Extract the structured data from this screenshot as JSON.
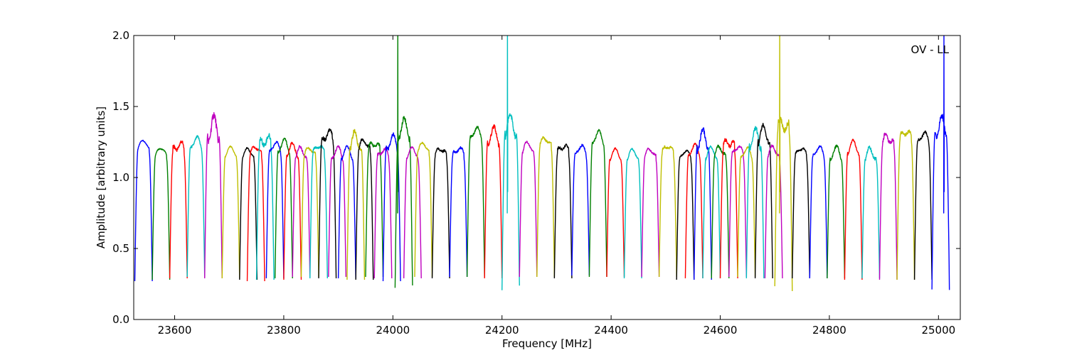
{
  "chart_data": {
    "type": "line",
    "title": "",
    "xlabel": "Frequency [MHz]",
    "ylabel": "Amplitude [arbitrary units]",
    "annotation": "OV - LL",
    "xlim": [
      23525,
      25040
    ],
    "ylim": [
      0.0,
      2.0
    ],
    "xticks": [
      23600,
      23800,
      24000,
      24200,
      24400,
      24600,
      24800,
      25000
    ],
    "yticks": [
      0.0,
      0.5,
      1.0,
      1.5,
      2.0
    ],
    "xtick_labels": [
      "23600",
      "23800",
      "24000",
      "24200",
      "24400",
      "24600",
      "24800",
      "25000"
    ],
    "ytick_labels": [
      "0.0",
      "0.5",
      "1.0",
      "1.5",
      "2.0"
    ],
    "grid": false,
    "legend": "none",
    "band_width_mhz": 32,
    "color_cycle": [
      "#0000ff",
      "#008000",
      "#ff0000",
      "#00bfbf",
      "#bf00bf",
      "#bfbf00",
      "#000000"
    ],
    "series": [
      {
        "start": 23527,
        "color": "#0000ff",
        "peak": 1.26,
        "ripple": 0.02,
        "dip": 0.27
      },
      {
        "start": 23559,
        "color": "#008000",
        "peak": 1.21,
        "ripple": 0.02,
        "dip": 0.28
      },
      {
        "start": 23591,
        "color": "#ff0000",
        "peak": 1.24,
        "ripple": 0.08,
        "dip": 0.29
      },
      {
        "start": 23623,
        "color": "#00bfbf",
        "peak": 1.27,
        "ripple": 0.05,
        "dip": 0.3
      },
      {
        "start": 23655,
        "color": "#bf00bf",
        "peak": 1.37,
        "ripple": 0.15,
        "dip": 0.29
      },
      {
        "start": 23687,
        "color": "#bfbf00",
        "peak": 1.21,
        "ripple": 0.02,
        "dip": 0.29
      },
      {
        "start": 23719,
        "color": "#000000",
        "peak": 1.2,
        "ripple": 0.03,
        "dip": 0.28
      },
      {
        "start": 23733,
        "color": "#ff0000",
        "peak": 1.22,
        "ripple": 0.04,
        "dip": 0.27
      },
      {
        "start": 23750,
        "color": "#00bfbf",
        "peak": 1.28,
        "ripple": 0.1,
        "dip": 0.28
      },
      {
        "start": 23768,
        "color": "#0000ff",
        "peak": 1.24,
        "ripple": 0.04,
        "dip": 0.29
      },
      {
        "start": 23784,
        "color": "#008000",
        "peak": 1.25,
        "ripple": 0.05,
        "dip": 0.29
      },
      {
        "start": 23800,
        "color": "#ff0000",
        "peak": 1.22,
        "ripple": 0.05,
        "dip": 0.28
      },
      {
        "start": 23816,
        "color": "#bf00bf",
        "peak": 1.2,
        "ripple": 0.05,
        "dip": 0.3
      },
      {
        "start": 23832,
        "color": "#bfbf00",
        "peak": 1.21,
        "ripple": 0.04,
        "dip": 0.3
      },
      {
        "start": 23848,
        "color": "#00bfbf",
        "peak": 1.23,
        "ripple": 0.04,
        "dip": 0.29
      },
      {
        "start": 23864,
        "color": "#000000",
        "peak": 1.32,
        "ripple": 0.08,
        "dip": 0.29
      },
      {
        "start": 23882,
        "color": "#bf00bf",
        "peak": 1.2,
        "ripple": 0.05,
        "dip": 0.3
      },
      {
        "start": 23900,
        "color": "#0000ff",
        "peak": 1.2,
        "ripple": 0.04,
        "dip": 0.29
      },
      {
        "start": 23916,
        "color": "#bfbf00",
        "peak": 1.28,
        "ripple": 0.1,
        "dip": 0.28
      },
      {
        "start": 23932,
        "color": "#000000",
        "peak": 1.26,
        "ripple": 0.05,
        "dip": 0.28
      },
      {
        "start": 23950,
        "color": "#008000",
        "peak": 1.25,
        "ripple": 0.06,
        "dip": 0.3
      },
      {
        "start": 23966,
        "color": "#bf00bf",
        "peak": 1.2,
        "ripple": 0.05,
        "dip": 0.29
      },
      {
        "start": 23982,
        "color": "#0000ff",
        "peak": 1.27,
        "ripple": 0.08,
        "dip": 0.27
      },
      {
        "start": 24004,
        "color": "#008000",
        "peak": 1.37,
        "ripple": 0.1,
        "dip": 0.22,
        "spike": 2.05,
        "spike_x": 24009
      },
      {
        "start": 24020,
        "color": "#bf00bf",
        "peak": 1.2,
        "ripple": 0.03,
        "dip": 0.29
      },
      {
        "start": 24040,
        "color": "#bfbf00",
        "peak": 1.24,
        "ripple": 0.03,
        "dip": 0.3
      },
      {
        "start": 24072,
        "color": "#000000",
        "peak": 1.21,
        "ripple": 0.05,
        "dip": 0.29
      },
      {
        "start": 24104,
        "color": "#0000ff",
        "peak": 1.21,
        "ripple": 0.05,
        "dip": 0.3
      },
      {
        "start": 24136,
        "color": "#008000",
        "peak": 1.34,
        "ripple": 0.05,
        "dip": 0.3
      },
      {
        "start": 24168,
        "color": "#ff0000",
        "peak": 1.32,
        "ripple": 0.08,
        "dip": 0.29
      },
      {
        "start": 24200,
        "color": "#00bfbf",
        "peak": 1.39,
        "ripple": 0.12,
        "dip": 0.22,
        "spike": 2.05,
        "spike_x": 24210
      },
      {
        "start": 24232,
        "color": "#bf00bf",
        "peak": 1.24,
        "ripple": 0.04,
        "dip": 0.3
      },
      {
        "start": 24264,
        "color": "#bfbf00",
        "peak": 1.28,
        "ripple": 0.05,
        "dip": 0.3
      },
      {
        "start": 24296,
        "color": "#000000",
        "peak": 1.23,
        "ripple": 0.06,
        "dip": 0.29
      },
      {
        "start": 24328,
        "color": "#0000ff",
        "peak": 1.22,
        "ripple": 0.04,
        "dip": 0.31
      },
      {
        "start": 24360,
        "color": "#008000",
        "peak": 1.31,
        "ripple": 0.05,
        "dip": 0.3
      },
      {
        "start": 24392,
        "color": "#ff0000",
        "peak": 1.19,
        "ripple": 0.03,
        "dip": 0.3
      },
      {
        "start": 24424,
        "color": "#00bfbf",
        "peak": 1.19,
        "ripple": 0.03,
        "dip": 0.29
      },
      {
        "start": 24456,
        "color": "#bf00bf",
        "peak": 1.2,
        "ripple": 0.04,
        "dip": 0.3
      },
      {
        "start": 24488,
        "color": "#bfbf00",
        "peak": 1.23,
        "ripple": 0.05,
        "dip": 0.3
      },
      {
        "start": 24520,
        "color": "#000000",
        "peak": 1.19,
        "ripple": 0.03,
        "dip": 0.28
      },
      {
        "start": 24536,
        "color": "#ff0000",
        "peak": 1.22,
        "ripple": 0.04,
        "dip": 0.29
      },
      {
        "start": 24552,
        "color": "#0000ff",
        "peak": 1.29,
        "ripple": 0.1,
        "dip": 0.28
      },
      {
        "start": 24568,
        "color": "#00bfbf",
        "peak": 1.2,
        "ripple": 0.04,
        "dip": 0.29
      },
      {
        "start": 24584,
        "color": "#008000",
        "peak": 1.21,
        "ripple": 0.05,
        "dip": 0.29
      },
      {
        "start": 24600,
        "color": "#ff0000",
        "peak": 1.26,
        "ripple": 0.08,
        "dip": 0.29
      },
      {
        "start": 24616,
        "color": "#bf00bf",
        "peak": 1.22,
        "ripple": 0.04,
        "dip": 0.3
      },
      {
        "start": 24632,
        "color": "#bfbf00",
        "peak": 1.2,
        "ripple": 0.04,
        "dip": 0.3
      },
      {
        "start": 24648,
        "color": "#00bfbf",
        "peak": 1.3,
        "ripple": 0.1,
        "dip": 0.29
      },
      {
        "start": 24664,
        "color": "#000000",
        "peak": 1.33,
        "ripple": 0.08,
        "dip": 0.29
      },
      {
        "start": 24682,
        "color": "#bf00bf",
        "peak": 1.21,
        "ripple": 0.05,
        "dip": 0.29
      },
      {
        "start": 24700,
        "color": "#bfbf00",
        "peak": 1.39,
        "ripple": 0.12,
        "dip": 0.22,
        "spike": 2.05,
        "spike_x": 24709
      },
      {
        "start": 24732,
        "color": "#000000",
        "peak": 1.21,
        "ripple": 0.04,
        "dip": 0.29
      },
      {
        "start": 24764,
        "color": "#0000ff",
        "peak": 1.21,
        "ripple": 0.04,
        "dip": 0.29
      },
      {
        "start": 24796,
        "color": "#008000",
        "peak": 1.2,
        "ripple": 0.05,
        "dip": 0.29
      },
      {
        "start": 24828,
        "color": "#ff0000",
        "peak": 1.24,
        "ripple": 0.05,
        "dip": 0.28
      },
      {
        "start": 24860,
        "color": "#00bfbf",
        "peak": 1.19,
        "ripple": 0.06,
        "dip": 0.29
      },
      {
        "start": 24892,
        "color": "#bf00bf",
        "peak": 1.29,
        "ripple": 0.08,
        "dip": 0.28
      },
      {
        "start": 24924,
        "color": "#bfbf00",
        "peak": 1.33,
        "ripple": 0.06,
        "dip": 0.28
      },
      {
        "start": 24956,
        "color": "#000000",
        "peak": 1.31,
        "ripple": 0.05,
        "dip": 0.28
      },
      {
        "start": 24988,
        "color": "#0000ff",
        "peak": 1.38,
        "ripple": 0.12,
        "dip": 0.22,
        "spike": 2.05,
        "spike_x": 25010
      }
    ]
  }
}
